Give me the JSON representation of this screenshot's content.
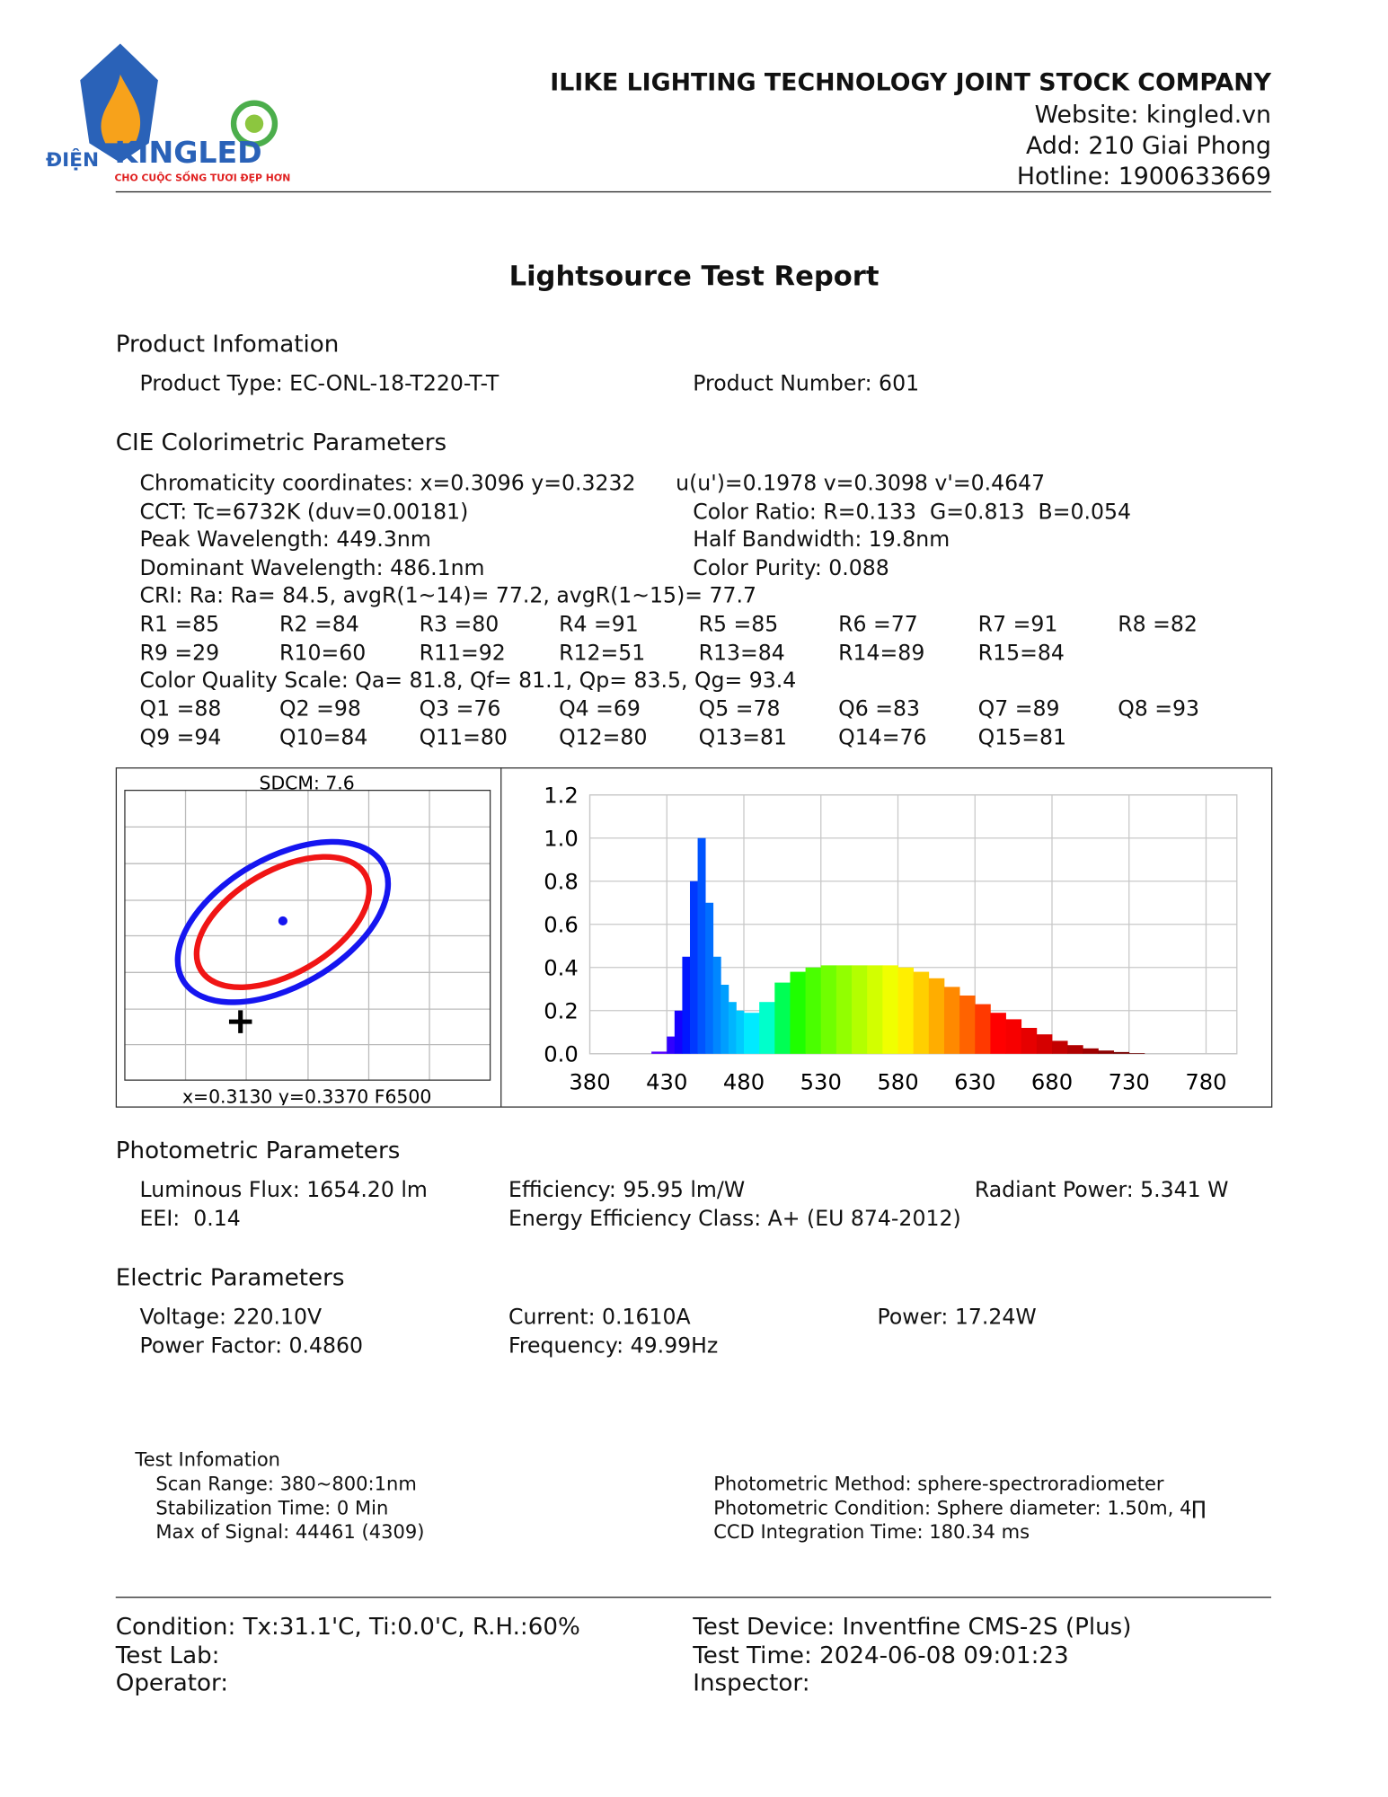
{
  "header": {
    "company": "ILIKE LIGHTING TECHNOLOGY JOINT STOCK COMPANY",
    "website": "Website: kingled.vn",
    "address": "Add: 210 Giai Phong",
    "hotline": "Hotline: 1900633669",
    "logo_left": "ĐIỆN",
    "logo_brand": "KINGLED",
    "logo_slogan": "CHO CUỘC SỐNG TƯƠI ĐẸP HƠN"
  },
  "title": "Lightsource Test Report",
  "product": {
    "heading": "Product Infomation",
    "type": "Product Type: EC-ONL-18-T220-T-T",
    "number": "Product Number: 601"
  },
  "cie": {
    "heading": "CIE Colorimetric Parameters",
    "lines": [
      [
        "Chromaticity coordinates: x=0.3096 y=0.3232",
        "u(u')=0.1978 v=0.3098 v'=0.4647"
      ],
      [
        "CCT: Tc=6732K (duv=0.00181)",
        "Color Ratio: R=0.133  G=0.813  B=0.054"
      ],
      [
        "Peak Wavelength: 449.3nm",
        "Half Bandwidth: 19.8nm"
      ],
      [
        "Dominant Wavelength: 486.1nm",
        "Color Purity: 0.088"
      ]
    ],
    "cri": "CRI: Ra: Ra= 84.5, avgR(1~14)= 77.2, avgR(1~15)= 77.7",
    "r_rows": [
      [
        "R1 =85",
        "R2 =84",
        "R3 =80",
        "R4 =91",
        "R5 =85",
        "R6 =77",
        "R7 =91",
        "R8 =82"
      ],
      [
        "R9 =29",
        "R10=60",
        "R11=92",
        "R12=51",
        "R13=84",
        "R14=89",
        "R15=84"
      ]
    ],
    "cqs": "Color Quality Scale: Qa= 81.8, Qf= 81.1, Qp= 83.5, Qg= 93.4",
    "q_rows": [
      [
        "Q1 =88",
        "Q2 =98",
        "Q3 =76",
        "Q4 =69",
        "Q5 =78",
        "Q6 =83",
        "Q7 =89",
        "Q8 =93"
      ],
      [
        "Q9 =94",
        "Q10=84",
        "Q11=80",
        "Q12=80",
        "Q13=81",
        "Q14=76",
        "Q15=81"
      ]
    ]
  },
  "diagram": {
    "sdcm": "SDCM:   7.6",
    "reference": "x=0.3130 y=0.3370 F6500"
  },
  "chart_data": {
    "type": "bar",
    "x": [
      380,
      390,
      400,
      410,
      420,
      430,
      435,
      440,
      445,
      450,
      455,
      460,
      465,
      470,
      475,
      480,
      490,
      500,
      510,
      520,
      530,
      540,
      550,
      560,
      570,
      580,
      590,
      600,
      610,
      620,
      630,
      640,
      650,
      660,
      670,
      680,
      690,
      700,
      710,
      720,
      730,
      740,
      750,
      760,
      770
    ],
    "values": [
      0,
      0,
      0,
      0,
      0.01,
      0.08,
      0.2,
      0.45,
      0.8,
      1.0,
      0.7,
      0.45,
      0.32,
      0.24,
      0.2,
      0.19,
      0.24,
      0.33,
      0.38,
      0.4,
      0.41,
      0.41,
      0.41,
      0.41,
      0.41,
      0.4,
      0.38,
      0.35,
      0.31,
      0.27,
      0.23,
      0.19,
      0.16,
      0.12,
      0.09,
      0.06,
      0.04,
      0.025,
      0.015,
      0.008,
      0.003,
      0,
      0,
      0,
      0
    ],
    "xlim": [
      380,
      800
    ],
    "ylim": [
      0,
      1.2
    ],
    "xticks": [
      380,
      430,
      480,
      530,
      580,
      630,
      680,
      730,
      780
    ],
    "yticks": [
      {
        "value": 0,
        "label": "0.0"
      },
      0.2,
      0.4,
      0.6,
      0.8,
      {
        "value": 1,
        "label": "1.0"
      },
      1.2
    ],
    "grid": true
  },
  "photometric": {
    "heading": "Photometric Parameters",
    "rows": [
      [
        "Luminous Flux: 1654.20 lm",
        "Efficiency: 95.95 lm/W",
        "Radiant Power: 5.341 W"
      ],
      [
        "EEI:  0.14",
        "Energy Efficiency Class: A+ (EU 874-2012)"
      ]
    ]
  },
  "electric": {
    "heading": "Electric Parameters",
    "rows": [
      [
        "Voltage: 220.10V",
        "Current: 0.1610A",
        "Power: 17.24W"
      ],
      [
        "Power Factor: 0.4860",
        "Frequency: 49.99Hz"
      ]
    ]
  },
  "test": {
    "heading": "Test Infomation",
    "left": [
      "Scan Range: 380~800:1nm",
      "Stabilization Time: 0 Min",
      "Max of Signal: 44461 (4309)"
    ],
    "right": [
      "Photometric Method: sphere-spectroradiometer",
      "Photometric Condition: Sphere diameter: 1.50m, 4∏",
      "CCD Integration Time: 180.34 ms"
    ]
  },
  "footer": {
    "left": [
      "Condition: Tx:31.1'C, Ti:0.0'C, R.H.:60%",
      "Test Lab:",
      "Operator:"
    ],
    "right": [
      "Test Device: Inventfine CMS-2S (Plus)",
      "Test Time: 2024-06-08 09:01:23",
      "Inspector:"
    ]
  }
}
